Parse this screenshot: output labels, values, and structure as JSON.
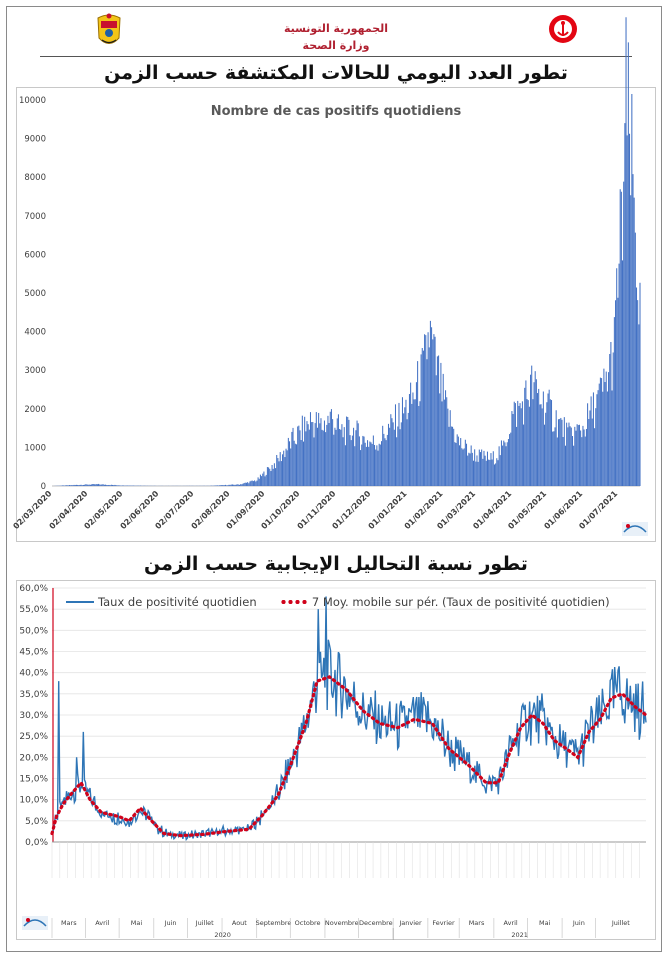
{
  "header": {
    "line1": "الجمهورية التونسية",
    "line2": "وزارة الصحة"
  },
  "chart_data": [
    {
      "type": "area",
      "section_title": "تطور العدد اليومي للحالات المكتشفة حسب الزمن",
      "title": "Nombre de cas positifs quotidiens",
      "color": "#4472c4",
      "ylim": [
        0,
        10000
      ],
      "yticks": [
        "0",
        "1000",
        "2000",
        "3000",
        "4000",
        "5000",
        "6000",
        "7000",
        "8000",
        "9000",
        "10000"
      ],
      "xticks": [
        "02/03/2020",
        "02/04/2020",
        "02/05/2020",
        "02/06/2020",
        "02/07/2020",
        "02/08/2020",
        "01/09/2020",
        "01/10/2020",
        "01/11/2020",
        "01/12/2020",
        "01/01/2021",
        "01/02/2021",
        "01/03/2021",
        "01/04/2021",
        "01/05/2021",
        "01/06/2021",
        "01/07/2021"
      ],
      "x_start": "2020-03-02",
      "keypoints": [
        [
          "2020-03-02",
          0
        ],
        [
          "2020-03-25",
          30
        ],
        [
          "2020-04-10",
          45
        ],
        [
          "2020-05-01",
          15
        ],
        [
          "2020-06-01",
          3
        ],
        [
          "2020-07-15",
          5
        ],
        [
          "2020-08-10",
          40
        ],
        [
          "2020-08-25",
          150
        ],
        [
          "2020-09-10",
          600
        ],
        [
          "2020-09-25",
          1200
        ],
        [
          "2020-10-05",
          1500
        ],
        [
          "2020-10-10",
          1700
        ],
        [
          "2020-10-20",
          1550
        ],
        [
          "2020-10-28",
          1800
        ],
        [
          "2020-11-05",
          1400
        ],
        [
          "2020-11-15",
          1450
        ],
        [
          "2020-11-25",
          1200
        ],
        [
          "2020-12-05",
          1100
        ],
        [
          "2020-12-20",
          1600
        ],
        [
          "2021-01-05",
          2200
        ],
        [
          "2021-01-15",
          3000
        ],
        [
          "2021-01-20",
          4000
        ],
        [
          "2021-01-25",
          3200
        ],
        [
          "2021-02-05",
          1800
        ],
        [
          "2021-02-15",
          1100
        ],
        [
          "2021-03-01",
          800
        ],
        [
          "2021-03-15",
          700
        ],
        [
          "2021-03-25",
          1000
        ],
        [
          "2021-04-01",
          1800
        ],
        [
          "2021-04-10",
          2100
        ],
        [
          "2021-04-18",
          2600
        ],
        [
          "2021-04-25",
          2300
        ],
        [
          "2021-05-05",
          1900
        ],
        [
          "2021-05-20",
          1300
        ],
        [
          "2021-06-01",
          1500
        ],
        [
          "2021-06-10",
          2000
        ],
        [
          "2021-06-20",
          2600
        ],
        [
          "2021-06-28",
          3600
        ],
        [
          "2021-07-01",
          5500
        ],
        [
          "2021-07-05",
          7000
        ],
        [
          "2021-07-08",
          9800
        ],
        [
          "2021-07-12",
          8500
        ],
        [
          "2021-07-15",
          7200
        ],
        [
          "2021-07-18",
          5500
        ],
        [
          "2021-07-20",
          4500
        ]
      ]
    },
    {
      "type": "line",
      "section_title": "تطور نسبة التحاليل الإيجابية حسب الزمن",
      "ylim": [
        0,
        60
      ],
      "yticks": [
        "0,0%",
        "5,0%",
        "10,0%",
        "15,0%",
        "20,0%",
        "25,0%",
        "30,0%",
        "35,0%",
        "40,0%",
        "45,0%",
        "50,0%",
        "55,0%",
        "60,0%"
      ],
      "series": [
        {
          "name": "Taux de positivité quotidien",
          "color": "#2e75b6"
        },
        {
          "name": "7 Moy. mobile sur pér. (Taux de positivité quotidien)",
          "color": "#d0021b"
        }
      ],
      "x_start": "2020-03-02",
      "keypoints": [
        [
          "2020-03-02",
          2
        ],
        [
          "2020-03-06",
          6
        ],
        [
          "2020-03-12",
          9
        ],
        [
          "2020-03-18",
          11
        ],
        [
          "2020-03-28",
          14
        ],
        [
          "2020-04-05",
          10
        ],
        [
          "2020-04-15",
          7
        ],
        [
          "2020-05-01",
          6
        ],
        [
          "2020-05-10",
          5
        ],
        [
          "2020-05-20",
          8
        ],
        [
          "2020-05-30",
          5
        ],
        [
          "2020-06-10",
          2
        ],
        [
          "2020-06-25",
          1.5
        ],
        [
          "2020-07-15",
          1.8
        ],
        [
          "2020-08-05",
          2.5
        ],
        [
          "2020-08-25",
          3
        ],
        [
          "2020-09-05",
          6
        ],
        [
          "2020-09-20",
          11
        ],
        [
          "2020-10-01",
          18
        ],
        [
          "2020-10-15",
          28
        ],
        [
          "2020-10-25",
          38
        ],
        [
          "2020-11-05",
          39
        ],
        [
          "2020-11-20",
          36
        ],
        [
          "2020-12-05",
          31
        ],
        [
          "2020-12-20",
          28
        ],
        [
          "2021-01-05",
          27
        ],
        [
          "2021-01-20",
          29
        ],
        [
          "2021-02-05",
          28
        ],
        [
          "2021-02-20",
          22
        ],
        [
          "2021-03-10",
          18
        ],
        [
          "2021-03-25",
          14
        ],
        [
          "2021-04-05",
          14
        ],
        [
          "2021-04-15",
          21
        ],
        [
          "2021-04-25",
          27
        ],
        [
          "2021-05-05",
          30
        ],
        [
          "2021-05-15",
          28
        ],
        [
          "2021-05-25",
          24
        ],
        [
          "2021-06-05",
          22
        ],
        [
          "2021-06-15",
          20
        ],
        [
          "2021-06-25",
          26
        ],
        [
          "2021-07-05",
          29
        ],
        [
          "2021-07-15",
          34
        ],
        [
          "2021-07-25",
          35
        ],
        [
          "2021-08-05",
          32
        ],
        [
          "2021-08-15",
          30
        ]
      ],
      "spikes": [
        [
          "2020-03-08",
          38
        ],
        [
          "2020-03-24",
          20
        ],
        [
          "2020-03-30",
          26
        ],
        [
          "2020-10-26",
          55
        ],
        [
          "2020-11-02",
          58
        ]
      ],
      "months": [
        "Mars",
        "Avril",
        "Mai",
        "Juin",
        "Juillet",
        "Aout",
        "Septembre",
        "Octobre",
        "Novembre",
        "Decembre",
        "Janvier",
        "Fevrier",
        "Mars",
        "Avril",
        "Mai",
        "Juin",
        "Juillet"
      ],
      "years": [
        "2020",
        "2021"
      ]
    }
  ]
}
